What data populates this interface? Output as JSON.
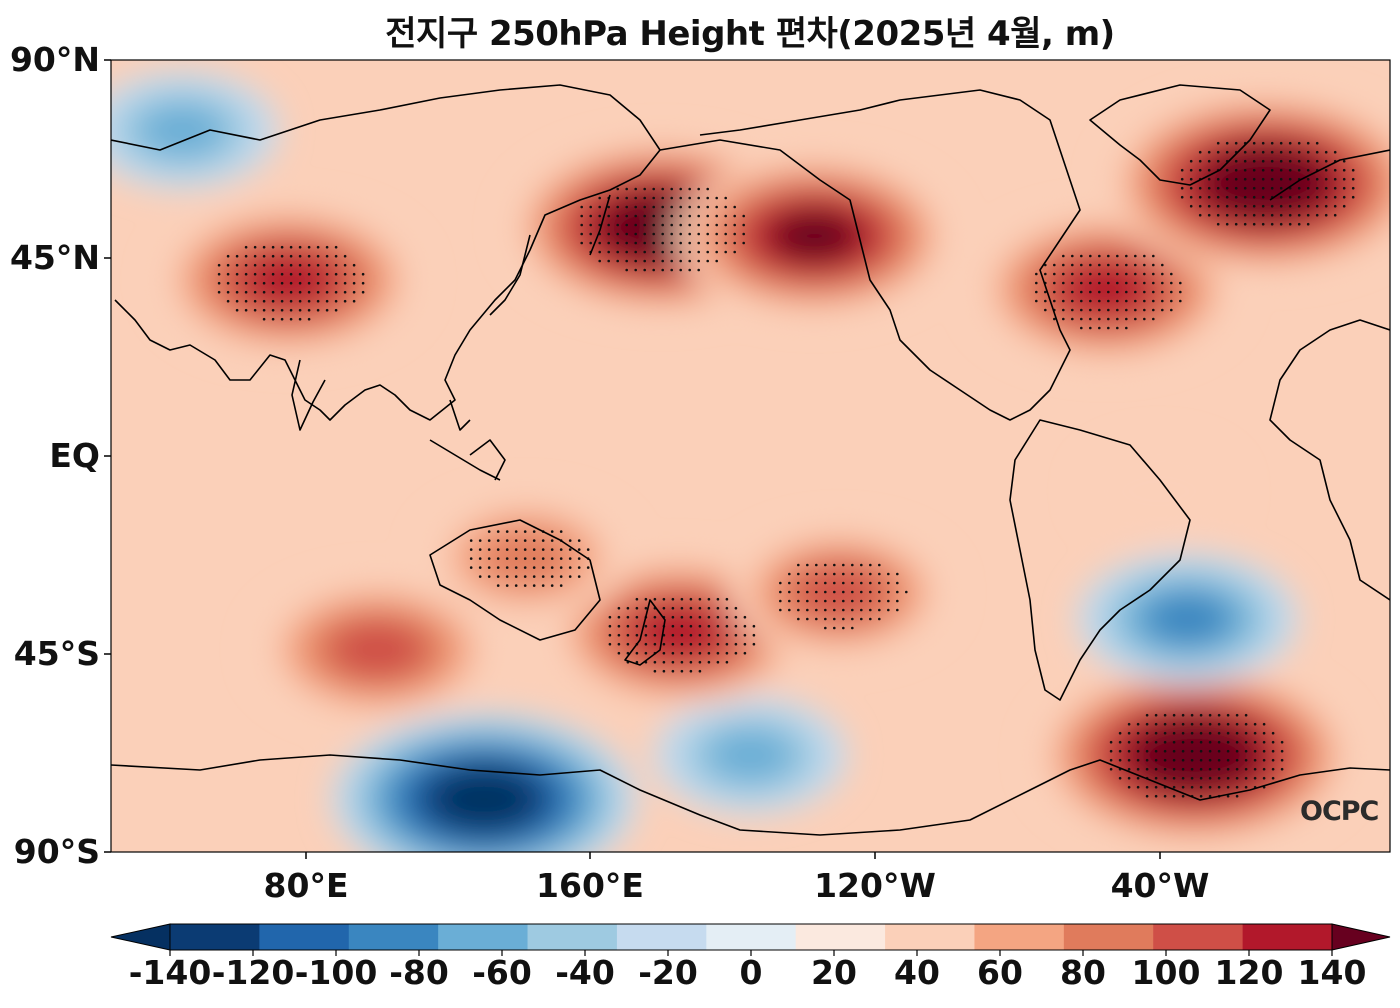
{
  "title": "전지구 250hPa Height 편차(2025년 4월, m)",
  "watermark": "OCPC",
  "y_ticks": [
    "90°N",
    "45°N",
    "EQ",
    "45°S",
    "90°S"
  ],
  "x_ticks": [
    "80°E",
    "160°E",
    "120°W",
    "40°W"
  ],
  "colorbar": {
    "labels": [
      "-140",
      "-120",
      "-100",
      "-80",
      "-60",
      "-40",
      "-20",
      "0",
      "20",
      "40",
      "60",
      "80",
      "100",
      "120",
      "140"
    ],
    "colors": [
      "#053061",
      "#0b3b73",
      "#2166ac",
      "#3a86c0",
      "#6aaed6",
      "#9ecae1",
      "#c6dbef",
      "#e4eef5",
      "#fbe9df",
      "#fbd0b9",
      "#f4a582",
      "#e07b5c",
      "#cf4f47",
      "#b2182b",
      "#67001f"
    ]
  },
  "chart_data": {
    "type": "contour-map",
    "projection": "equirectangular, centred on 180°",
    "variable": "250hPa Height anomaly",
    "units": "m",
    "period": "2025년 4월",
    "levels": [
      -140,
      -120,
      -100,
      -80,
      -60,
      -40,
      -20,
      0,
      20,
      40,
      60,
      80,
      100,
      120,
      140
    ],
    "extend": "both",
    "lat_range": [
      -90,
      90
    ],
    "lon_range": [
      20,
      380
    ],
    "features": [
      {
        "lon": 175,
        "lat": 52,
        "value": 140,
        "stippled": true
      },
      {
        "lon": 218,
        "lat": 50,
        "value": 120,
        "stippled": false
      },
      {
        "lon": 70,
        "lat": 40,
        "value": 110,
        "stippled": true
      },
      {
        "lon": 300,
        "lat": 38,
        "value": 110,
        "stippled": true
      },
      {
        "lon": 345,
        "lat": 62,
        "value": 150,
        "stippled": true
      },
      {
        "lon": 40,
        "lat": 74,
        "value": -60,
        "stippled": false
      },
      {
        "lon": 125,
        "lat": -78,
        "value": -140,
        "stippled": false
      },
      {
        "lon": 200,
        "lat": -68,
        "value": -60,
        "stippled": false
      },
      {
        "lon": 325,
        "lat": -68,
        "value": 150,
        "stippled": true
      },
      {
        "lon": 323,
        "lat": -37,
        "value": -80,
        "stippled": false
      },
      {
        "lon": 180,
        "lat": -40,
        "value": 110,
        "stippled": true
      },
      {
        "lon": 95,
        "lat": -44,
        "value": 95,
        "stippled": false
      },
      {
        "lon": 225,
        "lat": -31,
        "value": 80,
        "stippled": true
      },
      {
        "lon": 137,
        "lat": -23,
        "value": 70,
        "stippled": true
      },
      {
        "lon": 315,
        "lat": -8,
        "value": 30,
        "stippled": false
      }
    ]
  }
}
